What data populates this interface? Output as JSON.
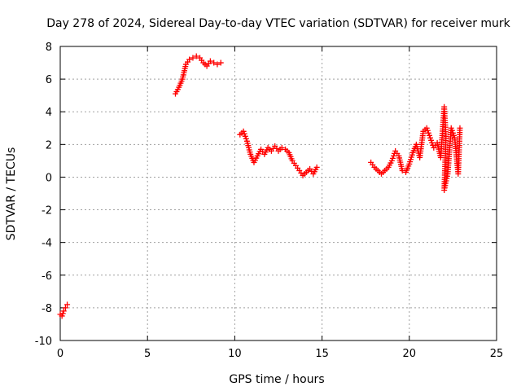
{
  "chart_data": {
    "type": "scatter",
    "title": "Day 278 of 2024, Sidereal Day-to-day VTEC variation (SDTVAR) for receiver murk",
    "xlabel": "GPS time / hours",
    "ylabel": "SDTVAR / TECUs",
    "xlim": [
      0,
      25
    ],
    "ylim": [
      -10,
      8
    ],
    "xticks": [
      {
        "v": 0,
        "label": "0"
      },
      {
        "v": 5,
        "label": "5"
      },
      {
        "v": 10,
        "label": "10"
      },
      {
        "v": 15,
        "label": "15"
      },
      {
        "v": 20,
        "label": "20"
      },
      {
        "v": 25,
        "label": "25"
      }
    ],
    "yticks": [
      {
        "v": -10,
        "label": "-10"
      },
      {
        "v": -8,
        "label": "-8"
      },
      {
        "v": -6,
        "label": "-6"
      },
      {
        "v": -4,
        "label": "-4"
      },
      {
        "v": -2,
        "label": "-2"
      },
      {
        "v": 0,
        "label": "0"
      },
      {
        "v": 2,
        "label": "2"
      },
      {
        "v": 4,
        "label": "4"
      },
      {
        "v": 6,
        "label": "6"
      },
      {
        "v": 8,
        "label": "8"
      }
    ],
    "grid": true,
    "marker_color": "#ff0000",
    "marker": "plus",
    "segments": [
      {
        "name": "seg1",
        "points": [
          [
            0.0,
            -8.4
          ],
          [
            0.1,
            -8.5
          ],
          [
            0.2,
            -8.2
          ],
          [
            0.3,
            -8.0
          ],
          [
            0.4,
            -7.8
          ]
        ]
      },
      {
        "name": "seg2",
        "points": [
          [
            6.6,
            5.1
          ],
          [
            6.8,
            5.5
          ],
          [
            7.0,
            6.0
          ],
          [
            7.2,
            6.9
          ],
          [
            7.4,
            7.2
          ],
          [
            7.6,
            7.3
          ],
          [
            7.8,
            7.4
          ],
          [
            8.0,
            7.3
          ],
          [
            8.2,
            7.0
          ],
          [
            8.4,
            6.8
          ],
          [
            8.6,
            7.1
          ],
          [
            8.8,
            7.0
          ],
          [
            9.0,
            6.9
          ],
          [
            9.2,
            7.0
          ]
        ]
      },
      {
        "name": "seg3",
        "points": [
          [
            10.3,
            2.6
          ],
          [
            10.5,
            2.8
          ],
          [
            10.7,
            2.2
          ],
          [
            10.9,
            1.4
          ],
          [
            11.1,
            0.9
          ],
          [
            11.3,
            1.3
          ],
          [
            11.5,
            1.7
          ],
          [
            11.7,
            1.4
          ],
          [
            11.9,
            1.8
          ],
          [
            12.1,
            1.6
          ],
          [
            12.3,
            1.9
          ],
          [
            12.5,
            1.6
          ],
          [
            12.7,
            1.8
          ],
          [
            12.9,
            1.7
          ],
          [
            13.1,
            1.5
          ],
          [
            13.3,
            1.0
          ],
          [
            13.5,
            0.7
          ],
          [
            13.7,
            0.4
          ],
          [
            13.9,
            0.1
          ],
          [
            14.1,
            0.3
          ],
          [
            14.3,
            0.5
          ],
          [
            14.5,
            0.2
          ],
          [
            14.7,
            0.6
          ]
        ]
      },
      {
        "name": "seg4",
        "points": [
          [
            17.8,
            0.9
          ],
          [
            18.0,
            0.6
          ],
          [
            18.2,
            0.4
          ],
          [
            18.4,
            0.2
          ],
          [
            18.6,
            0.4
          ],
          [
            18.8,
            0.6
          ],
          [
            19.0,
            1.0
          ],
          [
            19.2,
            1.6
          ],
          [
            19.4,
            1.3
          ],
          [
            19.6,
            0.4
          ],
          [
            19.8,
            0.3
          ],
          [
            20.0,
            0.8
          ],
          [
            20.2,
            1.5
          ],
          [
            20.4,
            2.0
          ],
          [
            20.6,
            1.2
          ],
          [
            20.8,
            2.8
          ],
          [
            21.0,
            3.0
          ],
          [
            21.2,
            2.4
          ],
          [
            21.4,
            1.8
          ],
          [
            21.6,
            2.1
          ],
          [
            21.8,
            1.2
          ],
          [
            22.0,
            4.3
          ],
          [
            22.1,
            2.5
          ],
          [
            22.0,
            -0.8
          ],
          [
            22.2,
            0.2
          ],
          [
            22.4,
            3.0
          ],
          [
            22.6,
            2.4
          ],
          [
            22.8,
            0.2
          ],
          [
            22.9,
            3.0
          ]
        ]
      }
    ]
  }
}
